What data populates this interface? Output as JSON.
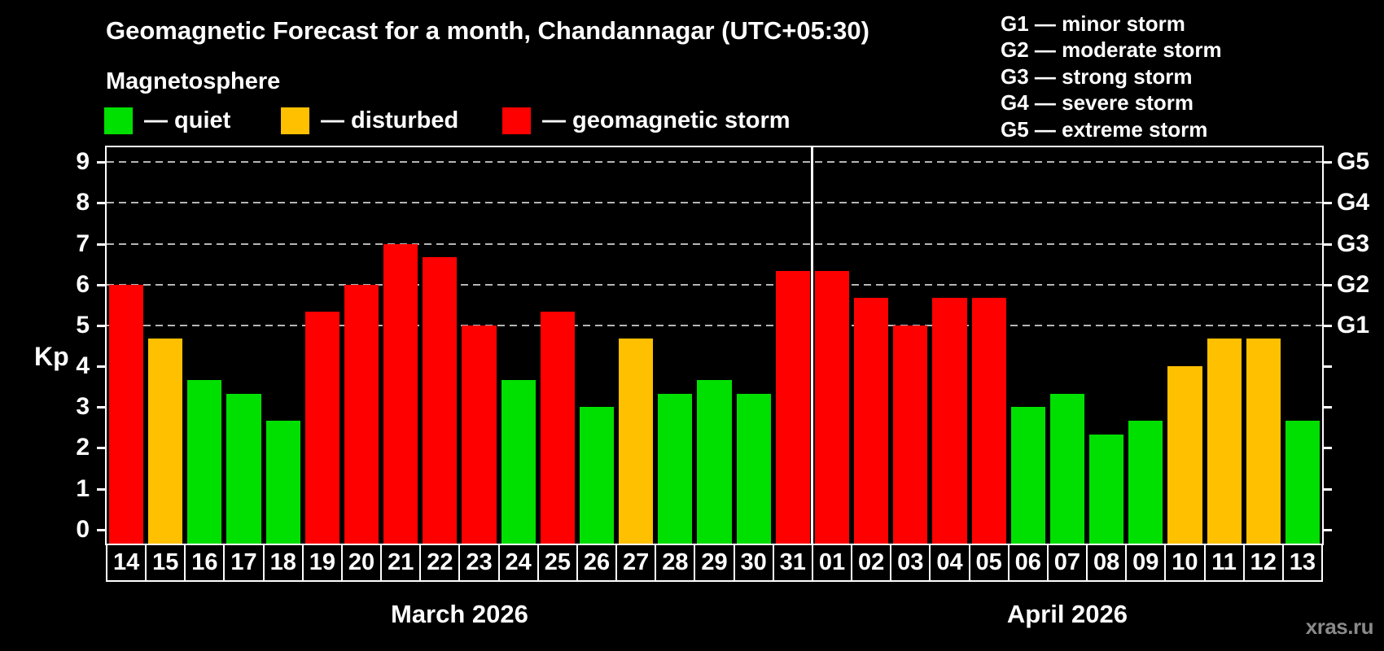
{
  "title": "Geomagnetic Forecast for a month, Chandannagar (UTC+05:30)",
  "subtitle": "Magnetosphere",
  "legend": {
    "items": [
      {
        "name": "quiet",
        "label": "— quiet",
        "color": "#00e000"
      },
      {
        "name": "disturbed",
        "label": "— disturbed",
        "color": "#ffc000"
      },
      {
        "name": "storm",
        "label": "— geomagnetic storm",
        "color": "#ff0000"
      }
    ]
  },
  "storm_scale": [
    "G1 — minor storm",
    "G2 — moderate storm",
    "G3 — strong storm",
    "G4 — severe storm",
    "G5 — extreme storm"
  ],
  "watermark": "xras.ru",
  "chart_data": {
    "type": "bar",
    "ylabel": "Kp",
    "ylim": [
      0,
      9
    ],
    "yticks": [
      0,
      1,
      2,
      3,
      4,
      5,
      6,
      7,
      8,
      9
    ],
    "gridlines_kp": [
      5,
      6,
      7,
      8,
      9
    ],
    "grid_style": "dashed",
    "legend_position": "top",
    "right_axis": [
      {
        "kp": 5,
        "label": "G1"
      },
      {
        "kp": 6,
        "label": "G2"
      },
      {
        "kp": 7,
        "label": "G3"
      },
      {
        "kp": 8,
        "label": "G4"
      },
      {
        "kp": 9,
        "label": "G5"
      }
    ],
    "status_colors": {
      "quiet": "#00e000",
      "disturbed": "#ffc000",
      "storm": "#ff0000"
    },
    "months": [
      {
        "label": "March 2026",
        "days": [
          {
            "day": "14",
            "kp": 6.0,
            "status": "storm"
          },
          {
            "day": "15",
            "kp": 4.67,
            "status": "disturbed"
          },
          {
            "day": "16",
            "kp": 3.67,
            "status": "quiet"
          },
          {
            "day": "17",
            "kp": 3.33,
            "status": "quiet"
          },
          {
            "day": "18",
            "kp": 2.67,
            "status": "quiet"
          },
          {
            "day": "19",
            "kp": 5.33,
            "status": "storm"
          },
          {
            "day": "20",
            "kp": 6.0,
            "status": "storm"
          },
          {
            "day": "21",
            "kp": 7.0,
            "status": "storm"
          },
          {
            "day": "22",
            "kp": 6.67,
            "status": "storm"
          },
          {
            "day": "23",
            "kp": 5.0,
            "status": "storm"
          },
          {
            "day": "24",
            "kp": 3.67,
            "status": "quiet"
          },
          {
            "day": "25",
            "kp": 5.33,
            "status": "storm"
          },
          {
            "day": "26",
            "kp": 3.0,
            "status": "quiet"
          },
          {
            "day": "27",
            "kp": 4.67,
            "status": "disturbed"
          },
          {
            "day": "28",
            "kp": 3.33,
            "status": "quiet"
          },
          {
            "day": "29",
            "kp": 3.67,
            "status": "quiet"
          },
          {
            "day": "30",
            "kp": 3.33,
            "status": "quiet"
          },
          {
            "day": "31",
            "kp": 6.33,
            "status": "storm"
          }
        ]
      },
      {
        "label": "April 2026",
        "days": [
          {
            "day": "01",
            "kp": 6.33,
            "status": "storm"
          },
          {
            "day": "02",
            "kp": 5.67,
            "status": "storm"
          },
          {
            "day": "03",
            "kp": 5.0,
            "status": "storm"
          },
          {
            "day": "04",
            "kp": 5.67,
            "status": "storm"
          },
          {
            "day": "05",
            "kp": 5.67,
            "status": "storm"
          },
          {
            "day": "06",
            "kp": 3.0,
            "status": "quiet"
          },
          {
            "day": "07",
            "kp": 3.33,
            "status": "quiet"
          },
          {
            "day": "08",
            "kp": 2.33,
            "status": "quiet"
          },
          {
            "day": "09",
            "kp": 2.67,
            "status": "quiet"
          },
          {
            "day": "10",
            "kp": 4.0,
            "status": "disturbed"
          },
          {
            "day": "11",
            "kp": 4.67,
            "status": "disturbed"
          },
          {
            "day": "12",
            "kp": 4.67,
            "status": "disturbed"
          },
          {
            "day": "13",
            "kp": 2.67,
            "status": "quiet"
          }
        ]
      }
    ]
  }
}
